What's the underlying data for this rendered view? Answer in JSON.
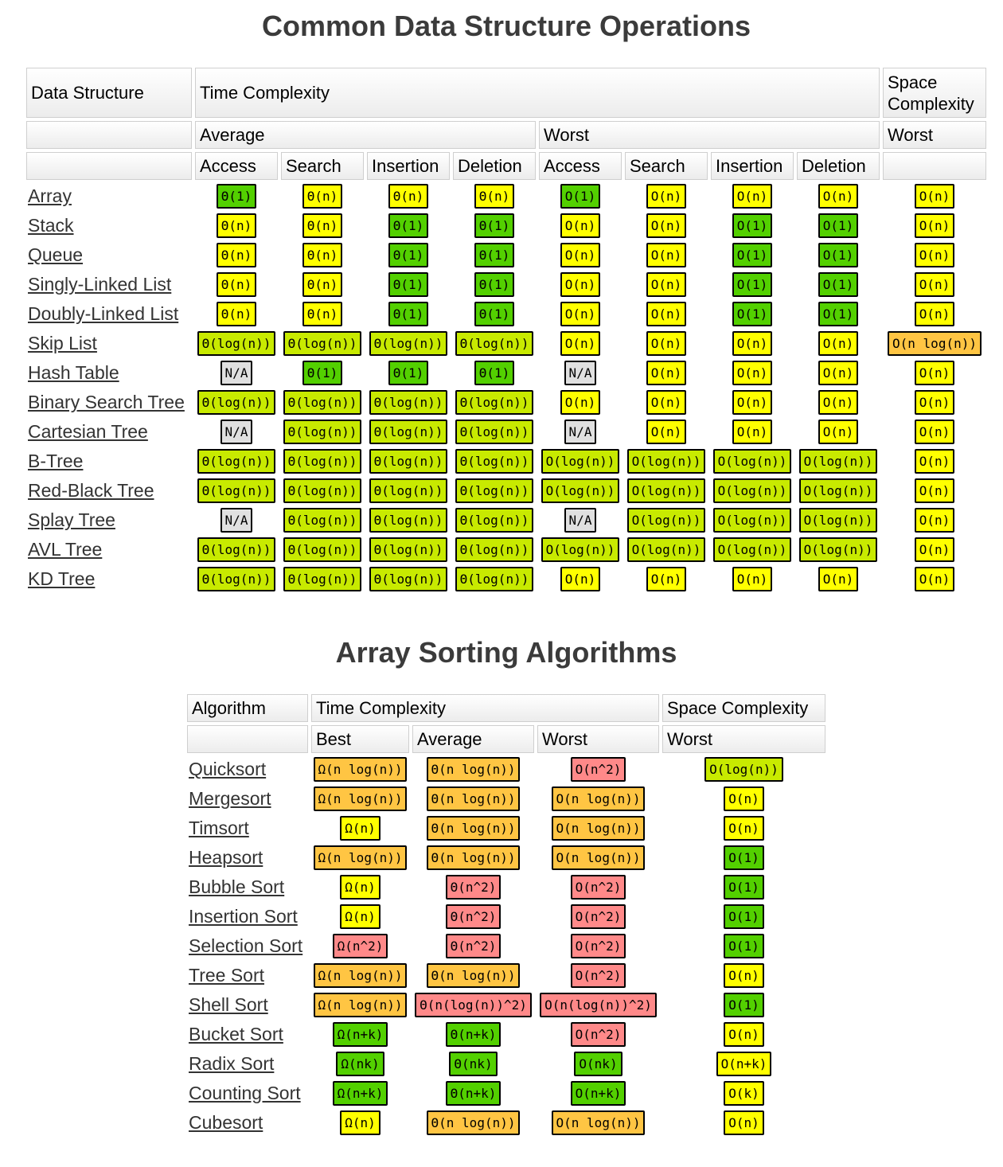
{
  "colors": {
    "green": "#53d000",
    "yellow-green": "#c8ea00",
    "yellow": "#ffff00",
    "orange": "#ffc543",
    "red": "#ff8989",
    "gray": "#e0e0e0"
  },
  "data_structures": {
    "title": "Common Data Structure Operations",
    "headers": {
      "data_structure": "Data Structure",
      "time_complexity": "Time Complexity",
      "space_complexity": "Space Complexity",
      "average": "Average",
      "worst": "Worst",
      "space_worst": "Worst",
      "ops": [
        "Access",
        "Search",
        "Insertion",
        "Deletion",
        "Access",
        "Search",
        "Insertion",
        "Deletion"
      ]
    },
    "rows": [
      {
        "name": "Array",
        "cells": [
          {
            "text": "Θ(1)",
            "color": "green"
          },
          {
            "text": "Θ(n)",
            "color": "yellow"
          },
          {
            "text": "Θ(n)",
            "color": "yellow"
          },
          {
            "text": "Θ(n)",
            "color": "yellow"
          },
          {
            "text": "O(1)",
            "color": "green"
          },
          {
            "text": "O(n)",
            "color": "yellow"
          },
          {
            "text": "O(n)",
            "color": "yellow"
          },
          {
            "text": "O(n)",
            "color": "yellow"
          },
          {
            "text": "O(n)",
            "color": "yellow"
          }
        ]
      },
      {
        "name": "Stack",
        "cells": [
          {
            "text": "Θ(n)",
            "color": "yellow"
          },
          {
            "text": "Θ(n)",
            "color": "yellow"
          },
          {
            "text": "Θ(1)",
            "color": "green"
          },
          {
            "text": "Θ(1)",
            "color": "green"
          },
          {
            "text": "O(n)",
            "color": "yellow"
          },
          {
            "text": "O(n)",
            "color": "yellow"
          },
          {
            "text": "O(1)",
            "color": "green"
          },
          {
            "text": "O(1)",
            "color": "green"
          },
          {
            "text": "O(n)",
            "color": "yellow"
          }
        ]
      },
      {
        "name": "Queue",
        "cells": [
          {
            "text": "Θ(n)",
            "color": "yellow"
          },
          {
            "text": "Θ(n)",
            "color": "yellow"
          },
          {
            "text": "Θ(1)",
            "color": "green"
          },
          {
            "text": "Θ(1)",
            "color": "green"
          },
          {
            "text": "O(n)",
            "color": "yellow"
          },
          {
            "text": "O(n)",
            "color": "yellow"
          },
          {
            "text": "O(1)",
            "color": "green"
          },
          {
            "text": "O(1)",
            "color": "green"
          },
          {
            "text": "O(n)",
            "color": "yellow"
          }
        ]
      },
      {
        "name": "Singly-Linked List",
        "cells": [
          {
            "text": "Θ(n)",
            "color": "yellow"
          },
          {
            "text": "Θ(n)",
            "color": "yellow"
          },
          {
            "text": "Θ(1)",
            "color": "green"
          },
          {
            "text": "Θ(1)",
            "color": "green"
          },
          {
            "text": "O(n)",
            "color": "yellow"
          },
          {
            "text": "O(n)",
            "color": "yellow"
          },
          {
            "text": "O(1)",
            "color": "green"
          },
          {
            "text": "O(1)",
            "color": "green"
          },
          {
            "text": "O(n)",
            "color": "yellow"
          }
        ]
      },
      {
        "name": "Doubly-Linked List",
        "cells": [
          {
            "text": "Θ(n)",
            "color": "yellow"
          },
          {
            "text": "Θ(n)",
            "color": "yellow"
          },
          {
            "text": "Θ(1)",
            "color": "green"
          },
          {
            "text": "Θ(1)",
            "color": "green"
          },
          {
            "text": "O(n)",
            "color": "yellow"
          },
          {
            "text": "O(n)",
            "color": "yellow"
          },
          {
            "text": "O(1)",
            "color": "green"
          },
          {
            "text": "O(1)",
            "color": "green"
          },
          {
            "text": "O(n)",
            "color": "yellow"
          }
        ]
      },
      {
        "name": "Skip List",
        "cells": [
          {
            "text": "Θ(log(n))",
            "color": "yellow-green"
          },
          {
            "text": "Θ(log(n))",
            "color": "yellow-green"
          },
          {
            "text": "Θ(log(n))",
            "color": "yellow-green"
          },
          {
            "text": "Θ(log(n))",
            "color": "yellow-green"
          },
          {
            "text": "O(n)",
            "color": "yellow"
          },
          {
            "text": "O(n)",
            "color": "yellow"
          },
          {
            "text": "O(n)",
            "color": "yellow"
          },
          {
            "text": "O(n)",
            "color": "yellow"
          },
          {
            "text": "O(n log(n))",
            "color": "orange"
          }
        ]
      },
      {
        "name": "Hash Table",
        "cells": [
          {
            "text": "N/A",
            "color": "gray"
          },
          {
            "text": "Θ(1)",
            "color": "green"
          },
          {
            "text": "Θ(1)",
            "color": "green"
          },
          {
            "text": "Θ(1)",
            "color": "green"
          },
          {
            "text": "N/A",
            "color": "gray"
          },
          {
            "text": "O(n)",
            "color": "yellow"
          },
          {
            "text": "O(n)",
            "color": "yellow"
          },
          {
            "text": "O(n)",
            "color": "yellow"
          },
          {
            "text": "O(n)",
            "color": "yellow"
          }
        ]
      },
      {
        "name": "Binary Search Tree",
        "cells": [
          {
            "text": "Θ(log(n))",
            "color": "yellow-green"
          },
          {
            "text": "Θ(log(n))",
            "color": "yellow-green"
          },
          {
            "text": "Θ(log(n))",
            "color": "yellow-green"
          },
          {
            "text": "Θ(log(n))",
            "color": "yellow-green"
          },
          {
            "text": "O(n)",
            "color": "yellow"
          },
          {
            "text": "O(n)",
            "color": "yellow"
          },
          {
            "text": "O(n)",
            "color": "yellow"
          },
          {
            "text": "O(n)",
            "color": "yellow"
          },
          {
            "text": "O(n)",
            "color": "yellow"
          }
        ]
      },
      {
        "name": "Cartesian Tree",
        "cells": [
          {
            "text": "N/A",
            "color": "gray"
          },
          {
            "text": "Θ(log(n))",
            "color": "yellow-green"
          },
          {
            "text": "Θ(log(n))",
            "color": "yellow-green"
          },
          {
            "text": "Θ(log(n))",
            "color": "yellow-green"
          },
          {
            "text": "N/A",
            "color": "gray"
          },
          {
            "text": "O(n)",
            "color": "yellow"
          },
          {
            "text": "O(n)",
            "color": "yellow"
          },
          {
            "text": "O(n)",
            "color": "yellow"
          },
          {
            "text": "O(n)",
            "color": "yellow"
          }
        ]
      },
      {
        "name": "B-Tree",
        "cells": [
          {
            "text": "Θ(log(n))",
            "color": "yellow-green"
          },
          {
            "text": "Θ(log(n))",
            "color": "yellow-green"
          },
          {
            "text": "Θ(log(n))",
            "color": "yellow-green"
          },
          {
            "text": "Θ(log(n))",
            "color": "yellow-green"
          },
          {
            "text": "O(log(n))",
            "color": "yellow-green"
          },
          {
            "text": "O(log(n))",
            "color": "yellow-green"
          },
          {
            "text": "O(log(n))",
            "color": "yellow-green"
          },
          {
            "text": "O(log(n))",
            "color": "yellow-green"
          },
          {
            "text": "O(n)",
            "color": "yellow"
          }
        ]
      },
      {
        "name": "Red-Black Tree",
        "cells": [
          {
            "text": "Θ(log(n))",
            "color": "yellow-green"
          },
          {
            "text": "Θ(log(n))",
            "color": "yellow-green"
          },
          {
            "text": "Θ(log(n))",
            "color": "yellow-green"
          },
          {
            "text": "Θ(log(n))",
            "color": "yellow-green"
          },
          {
            "text": "O(log(n))",
            "color": "yellow-green"
          },
          {
            "text": "O(log(n))",
            "color": "yellow-green"
          },
          {
            "text": "O(log(n))",
            "color": "yellow-green"
          },
          {
            "text": "O(log(n))",
            "color": "yellow-green"
          },
          {
            "text": "O(n)",
            "color": "yellow"
          }
        ]
      },
      {
        "name": "Splay Tree",
        "cells": [
          {
            "text": "N/A",
            "color": "gray"
          },
          {
            "text": "Θ(log(n))",
            "color": "yellow-green"
          },
          {
            "text": "Θ(log(n))",
            "color": "yellow-green"
          },
          {
            "text": "Θ(log(n))",
            "color": "yellow-green"
          },
          {
            "text": "N/A",
            "color": "gray"
          },
          {
            "text": "O(log(n))",
            "color": "yellow-green"
          },
          {
            "text": "O(log(n))",
            "color": "yellow-green"
          },
          {
            "text": "O(log(n))",
            "color": "yellow-green"
          },
          {
            "text": "O(n)",
            "color": "yellow"
          }
        ]
      },
      {
        "name": "AVL Tree",
        "cells": [
          {
            "text": "Θ(log(n))",
            "color": "yellow-green"
          },
          {
            "text": "Θ(log(n))",
            "color": "yellow-green"
          },
          {
            "text": "Θ(log(n))",
            "color": "yellow-green"
          },
          {
            "text": "Θ(log(n))",
            "color": "yellow-green"
          },
          {
            "text": "O(log(n))",
            "color": "yellow-green"
          },
          {
            "text": "O(log(n))",
            "color": "yellow-green"
          },
          {
            "text": "O(log(n))",
            "color": "yellow-green"
          },
          {
            "text": "O(log(n))",
            "color": "yellow-green"
          },
          {
            "text": "O(n)",
            "color": "yellow"
          }
        ]
      },
      {
        "name": "KD Tree",
        "cells": [
          {
            "text": "Θ(log(n))",
            "color": "yellow-green"
          },
          {
            "text": "Θ(log(n))",
            "color": "yellow-green"
          },
          {
            "text": "Θ(log(n))",
            "color": "yellow-green"
          },
          {
            "text": "Θ(log(n))",
            "color": "yellow-green"
          },
          {
            "text": "O(n)",
            "color": "yellow"
          },
          {
            "text": "O(n)",
            "color": "yellow"
          },
          {
            "text": "O(n)",
            "color": "yellow"
          },
          {
            "text": "O(n)",
            "color": "yellow"
          },
          {
            "text": "O(n)",
            "color": "yellow"
          }
        ]
      }
    ]
  },
  "sorting": {
    "title": "Array Sorting Algorithms",
    "headers": {
      "algorithm": "Algorithm",
      "time_complexity": "Time Complexity",
      "space_complexity": "Space Complexity",
      "best": "Best",
      "average": "Average",
      "worst": "Worst",
      "space_worst": "Worst"
    },
    "rows": [
      {
        "name": "Quicksort",
        "cells": [
          {
            "text": "Ω(n log(n))",
            "color": "orange"
          },
          {
            "text": "Θ(n log(n))",
            "color": "orange"
          },
          {
            "text": "O(n^2)",
            "color": "red"
          },
          {
            "text": "O(log(n))",
            "color": "yellow-green"
          }
        ]
      },
      {
        "name": "Mergesort",
        "cells": [
          {
            "text": "Ω(n log(n))",
            "color": "orange"
          },
          {
            "text": "Θ(n log(n))",
            "color": "orange"
          },
          {
            "text": "O(n log(n))",
            "color": "orange"
          },
          {
            "text": "O(n)",
            "color": "yellow"
          }
        ]
      },
      {
        "name": "Timsort",
        "cells": [
          {
            "text": "Ω(n)",
            "color": "yellow"
          },
          {
            "text": "Θ(n log(n))",
            "color": "orange"
          },
          {
            "text": "O(n log(n))",
            "color": "orange"
          },
          {
            "text": "O(n)",
            "color": "yellow"
          }
        ]
      },
      {
        "name": "Heapsort",
        "cells": [
          {
            "text": "Ω(n log(n))",
            "color": "orange"
          },
          {
            "text": "Θ(n log(n))",
            "color": "orange"
          },
          {
            "text": "O(n log(n))",
            "color": "orange"
          },
          {
            "text": "O(1)",
            "color": "green"
          }
        ]
      },
      {
        "name": "Bubble Sort",
        "cells": [
          {
            "text": "Ω(n)",
            "color": "yellow"
          },
          {
            "text": "Θ(n^2)",
            "color": "red"
          },
          {
            "text": "O(n^2)",
            "color": "red"
          },
          {
            "text": "O(1)",
            "color": "green"
          }
        ]
      },
      {
        "name": "Insertion Sort",
        "cells": [
          {
            "text": "Ω(n)",
            "color": "yellow"
          },
          {
            "text": "Θ(n^2)",
            "color": "red"
          },
          {
            "text": "O(n^2)",
            "color": "red"
          },
          {
            "text": "O(1)",
            "color": "green"
          }
        ]
      },
      {
        "name": "Selection Sort",
        "cells": [
          {
            "text": "Ω(n^2)",
            "color": "red"
          },
          {
            "text": "Θ(n^2)",
            "color": "red"
          },
          {
            "text": "O(n^2)",
            "color": "red"
          },
          {
            "text": "O(1)",
            "color": "green"
          }
        ]
      },
      {
        "name": "Tree Sort",
        "cells": [
          {
            "text": "Ω(n log(n))",
            "color": "orange"
          },
          {
            "text": "Θ(n log(n))",
            "color": "orange"
          },
          {
            "text": "O(n^2)",
            "color": "red"
          },
          {
            "text": "O(n)",
            "color": "yellow"
          }
        ]
      },
      {
        "name": "Shell Sort",
        "cells": [
          {
            "text": "Ω(n log(n))",
            "color": "orange"
          },
          {
            "text": "Θ(n(log(n))^2)",
            "color": "red"
          },
          {
            "text": "O(n(log(n))^2)",
            "color": "red"
          },
          {
            "text": "O(1)",
            "color": "green"
          }
        ]
      },
      {
        "name": "Bucket Sort",
        "cells": [
          {
            "text": "Ω(n+k)",
            "color": "green"
          },
          {
            "text": "Θ(n+k)",
            "color": "green"
          },
          {
            "text": "O(n^2)",
            "color": "red"
          },
          {
            "text": "O(n)",
            "color": "yellow"
          }
        ]
      },
      {
        "name": "Radix Sort",
        "cells": [
          {
            "text": "Ω(nk)",
            "color": "green"
          },
          {
            "text": "Θ(nk)",
            "color": "green"
          },
          {
            "text": "O(nk)",
            "color": "green"
          },
          {
            "text": "O(n+k)",
            "color": "yellow"
          }
        ]
      },
      {
        "name": "Counting Sort",
        "cells": [
          {
            "text": "Ω(n+k)",
            "color": "green"
          },
          {
            "text": "Θ(n+k)",
            "color": "green"
          },
          {
            "text": "O(n+k)",
            "color": "green"
          },
          {
            "text": "O(k)",
            "color": "yellow"
          }
        ]
      },
      {
        "name": "Cubesort",
        "cells": [
          {
            "text": "Ω(n)",
            "color": "yellow"
          },
          {
            "text": "Θ(n log(n))",
            "color": "orange"
          },
          {
            "text": "O(n log(n))",
            "color": "orange"
          },
          {
            "text": "O(n)",
            "color": "yellow"
          }
        ]
      }
    ]
  }
}
